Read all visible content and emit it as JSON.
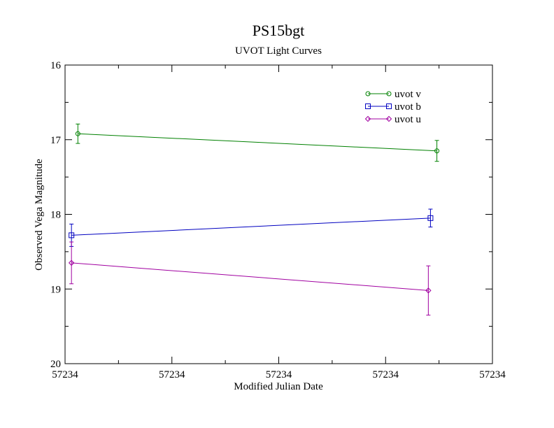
{
  "chart_data": {
    "type": "line",
    "title": "PS15bgt",
    "subtitle": "UVOT Light Curves",
    "xlabel": "Modified Julian Date",
    "ylabel": "Observed Vega Magnitude",
    "x_tick_labels": [
      "57234",
      "57234",
      "57234",
      "57234",
      "57234"
    ],
    "y_ticks": [
      "16",
      "17",
      "18",
      "19",
      "20"
    ],
    "y_inverted": true,
    "ylim": [
      16,
      20
    ],
    "grid": false,
    "legend_position": "top-right",
    "series": [
      {
        "name": "uvot v",
        "color": "#008000",
        "marker": "circle",
        "x": [
          0.03,
          0.87
        ],
        "y": [
          16.92,
          17.15
        ],
        "yerr": [
          0.13,
          0.14
        ]
      },
      {
        "name": "uvot b",
        "color": "#0000c0",
        "marker": "square",
        "x": [
          0.015,
          0.855
        ],
        "y": [
          18.28,
          18.05
        ],
        "yerr": [
          0.15,
          0.12
        ]
      },
      {
        "name": "uvot u",
        "color": "#a000a0",
        "marker": "diamond",
        "x": [
          0.015,
          0.85
        ],
        "y": [
          18.65,
          19.02
        ],
        "yerr": [
          0.28,
          0.33
        ]
      }
    ]
  }
}
